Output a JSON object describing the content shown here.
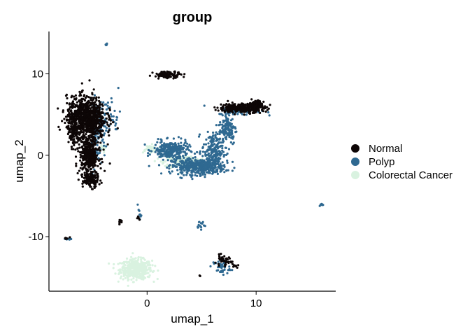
{
  "chart_data": {
    "type": "scatter",
    "title": "group",
    "xlabel": "umap_1",
    "ylabel": "umap_2",
    "xlim": [
      -9,
      17.3
    ],
    "ylim": [
      -16.7,
      15.2
    ],
    "x_ticks": [
      0,
      10
    ],
    "y_ticks": [
      -10,
      0,
      10
    ],
    "grid": false,
    "legend_position": "right",
    "series": [
      {
        "name": "Normal",
        "color": "#0d0606",
        "clusters": [
          {
            "label": "left-upper-blob",
            "cx": -5.6,
            "cy": 4.6,
            "sx": 1.1,
            "sy": 1.6,
            "n": 900
          },
          {
            "label": "left-tail",
            "cx": -5.3,
            "cy": 0.0,
            "sx": 0.55,
            "sy": 1.4,
            "n": 380
          },
          {
            "label": "left-tail-bottom",
            "cx": -5.2,
            "cy": -3.0,
            "sx": 0.45,
            "sy": 0.6,
            "n": 130
          },
          {
            "label": "left-stripe",
            "cx": -6.7,
            "cy": 2.5,
            "sx": 0.3,
            "sy": 1.0,
            "n": 90
          },
          {
            "label": "upper-mid",
            "cx": 1.9,
            "cy": 9.9,
            "sx": 0.8,
            "sy": 0.25,
            "n": 110
          },
          {
            "label": "right-arm",
            "cx": 8.7,
            "cy": 5.8,
            "sx": 1.3,
            "sy": 0.35,
            "n": 320
          },
          {
            "label": "right-arm-end",
            "cx": 10.0,
            "cy": 6.3,
            "sx": 0.35,
            "sy": 0.25,
            "n": 90
          },
          {
            "label": "small-bottom",
            "cx": 7.0,
            "cy": -13.0,
            "sx": 0.5,
            "sy": 0.4,
            "n": 40
          },
          {
            "label": "dot-a",
            "cx": -2.5,
            "cy": -8.2,
            "sx": 0.1,
            "sy": 0.15,
            "n": 8
          },
          {
            "label": "dot-b",
            "cx": -0.8,
            "cy": -7.7,
            "sx": 0.1,
            "sy": 0.15,
            "n": 6
          },
          {
            "label": "dot-c",
            "cx": 4.8,
            "cy": -14.8,
            "sx": 0.05,
            "sy": 0.05,
            "n": 2
          },
          {
            "label": "dot-d",
            "cx": 8.1,
            "cy": -13.6,
            "sx": 0.2,
            "sy": 0.1,
            "n": 8
          },
          {
            "label": "dot-e",
            "cx": -7.3,
            "cy": -10.2,
            "sx": 0.2,
            "sy": 0.1,
            "n": 6
          }
        ]
      },
      {
        "name": "Polyp",
        "color": "#2f6991",
        "clusters": [
          {
            "label": "center-mass",
            "cx": 4.7,
            "cy": -1.4,
            "sx": 1.5,
            "sy": 0.6,
            "n": 420
          },
          {
            "label": "center-left",
            "cx": 2.2,
            "cy": 0.6,
            "sx": 1.0,
            "sy": 0.7,
            "n": 260
          },
          {
            "label": "center-right",
            "cx": 6.0,
            "cy": 0.5,
            "sx": 0.6,
            "sy": 1.4,
            "n": 200
          },
          {
            "label": "right-arm-lower",
            "cx": 7.4,
            "cy": 3.2,
            "sx": 0.5,
            "sy": 1.2,
            "n": 120
          },
          {
            "label": "right-arm",
            "cx": 8.5,
            "cy": 5.5,
            "sx": 1.2,
            "sy": 0.35,
            "n": 90
          },
          {
            "label": "left-side",
            "cx": -4.6,
            "cy": 3.0,
            "sx": 0.5,
            "sy": 2.2,
            "n": 130
          },
          {
            "label": "left-spray",
            "cx": -3.4,
            "cy": 5.0,
            "sx": 0.6,
            "sy": 1.5,
            "n": 40
          },
          {
            "label": "top-dot",
            "cx": -3.7,
            "cy": 13.6,
            "sx": 0.06,
            "sy": 0.1,
            "n": 6
          },
          {
            "label": "far-right",
            "cx": 16.0,
            "cy": -6.1,
            "sx": 0.1,
            "sy": 0.1,
            "n": 8
          },
          {
            "label": "bottom-right",
            "cx": 6.8,
            "cy": -13.8,
            "sx": 0.5,
            "sy": 0.6,
            "n": 35
          },
          {
            "label": "mid-dots",
            "cx": 4.9,
            "cy": -8.6,
            "sx": 0.3,
            "sy": 0.3,
            "n": 14
          },
          {
            "label": "dot-f",
            "cx": -7.3,
            "cy": -10.3,
            "sx": 0.2,
            "sy": 0.1,
            "n": 6
          },
          {
            "label": "dot-g",
            "cx": -0.7,
            "cy": -7.2,
            "sx": 0.1,
            "sy": 0.4,
            "n": 8
          }
        ]
      },
      {
        "name": "Colorectal Cancer",
        "color": "#d9f2e0",
        "clusters": [
          {
            "label": "bottom-blob",
            "cx": -1.0,
            "cy": -14.0,
            "sx": 0.9,
            "sy": 0.75,
            "n": 500
          },
          {
            "label": "center-light",
            "cx": 3.5,
            "cy": -0.8,
            "sx": 1.2,
            "sy": 0.45,
            "n": 220
          },
          {
            "label": "left-light",
            "cx": 0.2,
            "cy": 0.8,
            "sx": 0.5,
            "sy": 0.3,
            "n": 40
          },
          {
            "label": "left-tiny",
            "cx": -4.1,
            "cy": 0.8,
            "sx": 0.15,
            "sy": 0.3,
            "n": 15
          }
        ]
      }
    ]
  }
}
